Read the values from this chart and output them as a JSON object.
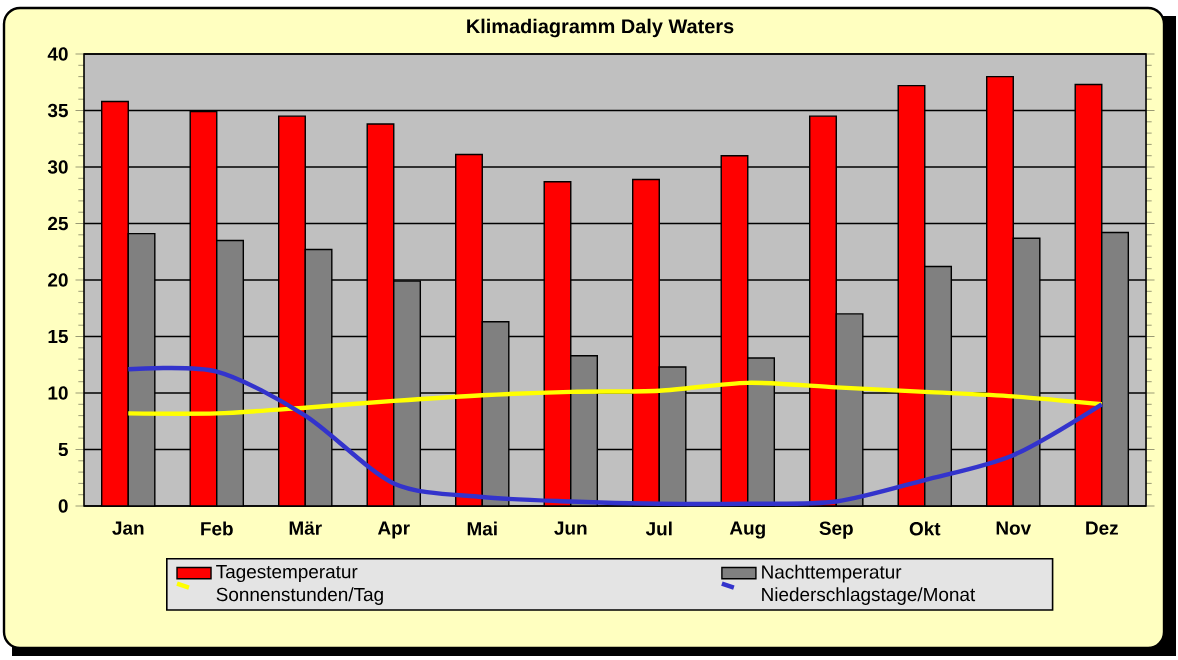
{
  "chart_data": {
    "type": "bar",
    "title": "Klimadiagramm Daly Waters",
    "categories": [
      "Jan",
      "Feb",
      "Mär",
      "Apr",
      "Mai",
      "Jun",
      "Jul",
      "Aug",
      "Sep",
      "Okt",
      "Nov",
      "Dez"
    ],
    "series": [
      {
        "name": "Tagestemperatur",
        "color": "#ff0000",
        "values": [
          35.8,
          34.9,
          34.5,
          33.8,
          31.1,
          28.7,
          28.9,
          31.0,
          34.5,
          37.2,
          38.0,
          37.3
        ]
      },
      {
        "name": "Nachttemperatur",
        "color": "#808080",
        "values": [
          24.1,
          23.5,
          22.7,
          19.9,
          16.3,
          13.3,
          12.3,
          13.1,
          17.0,
          21.2,
          23.7,
          24.2
        ]
      },
      {
        "name": "Sonnenstunden/Tag",
        "type": "line",
        "color": "#ffff00",
        "values": [
          8.2,
          8.2,
          8.7,
          9.3,
          9.8,
          10.1,
          10.2,
          10.9,
          10.5,
          10.1,
          9.7,
          9.0
        ]
      },
      {
        "name": "Niederschlagstage/Monat",
        "type": "line",
        "color": "#3333cc",
        "values": [
          12.1,
          11.9,
          8.0,
          2.0,
          0.8,
          0.4,
          0.2,
          0.2,
          0.4,
          2.3,
          4.5,
          9.0
        ]
      }
    ],
    "ylim": [
      0,
      40
    ],
    "yticks": [
      0,
      5,
      10,
      15,
      20,
      25,
      30,
      35,
      40
    ],
    "grid": "y",
    "legend": "bottom",
    "marker": "none"
  }
}
